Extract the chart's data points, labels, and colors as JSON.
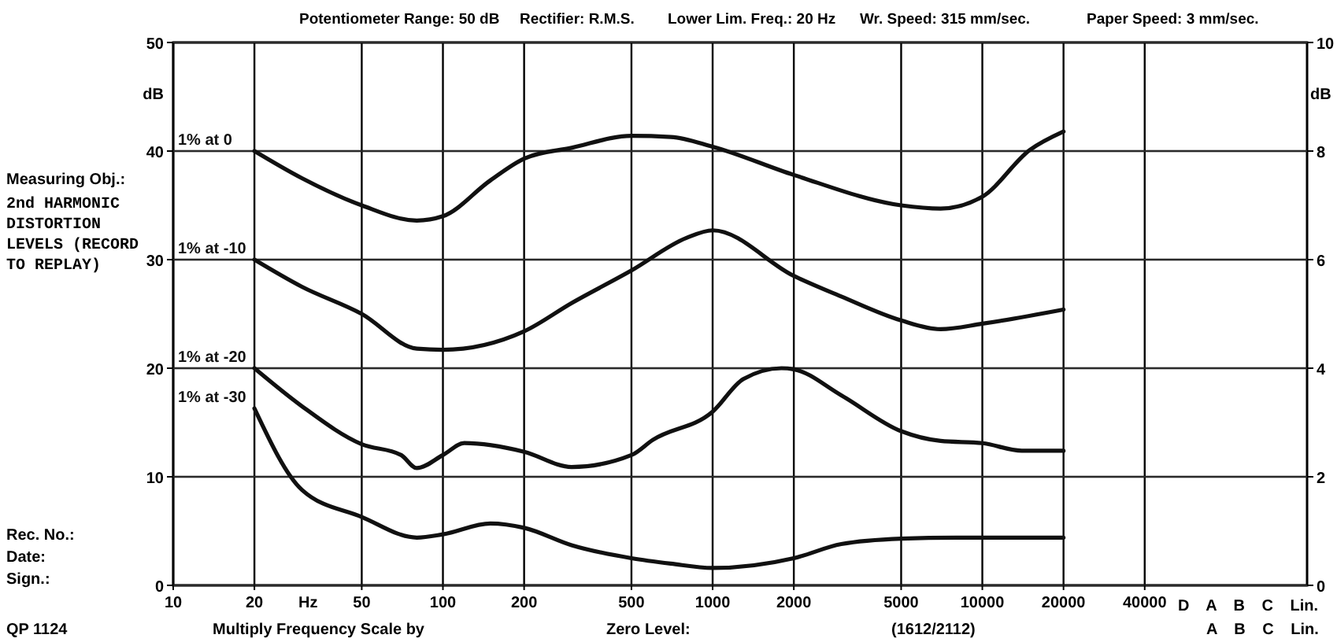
{
  "chart_data": {
    "type": "line",
    "xlabel": "Hz",
    "ylabel": "dB",
    "y2label": "dB",
    "log": "x",
    "xlim": [
      10,
      160000
    ],
    "xticks": [
      10,
      20,
      50,
      100,
      200,
      500,
      1000,
      2000,
      5000,
      10000,
      20000,
      40000
    ],
    "ylim": [
      0,
      50
    ],
    "yticks": [
      0,
      10,
      20,
      30,
      40,
      50
    ],
    "y2lim": [
      0,
      10
    ],
    "y2ticks": [
      0,
      2,
      4,
      6,
      8,
      10
    ],
    "grid": true,
    "marker": "none",
    "line_style": "solid",
    "series": [
      {
        "name": "1% at 0",
        "color": "#111111",
        "x": [
          20,
          30,
          50,
          80,
          100,
          150,
          200,
          300,
          500,
          700,
          1000,
          2000,
          5000,
          7000,
          10000,
          15000,
          20000
        ],
        "values": [
          40,
          37.5,
          35,
          33.6,
          34,
          37.3,
          39.3,
          40.3,
          41.4,
          41.3,
          40.4,
          37.8,
          35,
          34.7,
          35.8,
          40.1,
          41.8
        ]
      },
      {
        "name": "1% at -10",
        "color": "#111111",
        "x": [
          20,
          30,
          50,
          80,
          100,
          200,
          300,
          500,
          800,
          1000,
          2000,
          3000,
          5000,
          7000,
          10000,
          20000
        ],
        "values": [
          30,
          27.5,
          25,
          21.8,
          21.7,
          23.4,
          26,
          29,
          32,
          32.7,
          28.5,
          26.6,
          24.4,
          23.6,
          24.1,
          25.4
        ]
      },
      {
        "name": "1% at -20",
        "color": "#111111",
        "x": [
          20,
          30,
          50,
          70,
          80,
          100,
          120,
          200,
          300,
          500,
          600,
          1000,
          1300,
          1800,
          2000,
          3000,
          5000,
          7000,
          10000,
          14000,
          20000
        ],
        "values": [
          20,
          16.5,
          13,
          12,
          10.8,
          12,
          13.1,
          12.3,
          10.9,
          12,
          13.4,
          16,
          19,
          20,
          19.9,
          17.5,
          14.2,
          13.3,
          13.1,
          12.4,
          12.4
        ]
      },
      {
        "name": "1% at -30",
        "color": "#111111",
        "x": [
          20,
          30,
          50,
          80,
          100,
          150,
          200,
          300,
          500,
          700,
          1000,
          2000,
          3000,
          5000,
          8000,
          20000
        ],
        "values": [
          16.3,
          8.8,
          6.3,
          4.4,
          4.7,
          5.7,
          5.3,
          3.7,
          2.5,
          2,
          1.6,
          2.5,
          3.8,
          4.3,
          4.4,
          4.4
        ]
      }
    ],
    "annotations": [
      "Potentiometer Range: 50 dB",
      "Rectifier: R.M.S.",
      "Lower Lim. Freq.: 20 Hz",
      "Wr. Speed: 315 mm/sec.",
      "Paper Speed: 3 mm/sec.",
      "Measuring Obj.:",
      "2nd HARMONIC DISTORTION LEVELS (RECORD TO REPLAY)",
      "Rec. No.:",
      "Date:",
      "Sign.:",
      "QP 1124",
      "Multiply Frequency Scale by",
      "Zero Level:",
      "(1612/2112)",
      "D A B C Lin.",
      "A B C Lin."
    ]
  }
}
